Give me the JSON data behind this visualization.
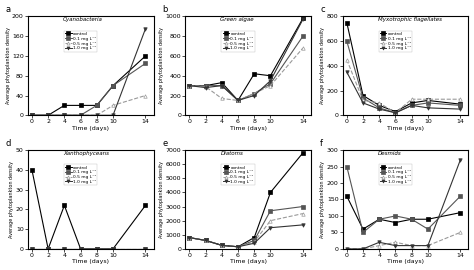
{
  "days": [
    0,
    2,
    4,
    6,
    8,
    10,
    14
  ],
  "panels": [
    {
      "label": "a",
      "title": "Cyanobacteria",
      "ylim": [
        0,
        200
      ],
      "yticks": [
        0,
        40,
        80,
        120,
        160,
        200
      ],
      "series": [
        {
          "name": "control",
          "marker": "s",
          "color": "#000000",
          "ls": "-",
          "lw": 0.8,
          "ms": 2.5,
          "mfc": "#000000",
          "values": [
            0,
            0,
            20,
            20,
            20,
            60,
            120
          ]
        },
        {
          "name": "0.1 mg L⁻¹",
          "marker": "s",
          "color": "#555555",
          "ls": "-",
          "lw": 0.8,
          "ms": 2.5,
          "mfc": "#555555",
          "values": [
            0,
            0,
            0,
            0,
            20,
            60,
            105
          ]
        },
        {
          "name": "0.5 mg L⁻¹",
          "marker": "^",
          "color": "#999999",
          "ls": "--",
          "lw": 0.8,
          "ms": 2.5,
          "mfc": "#ffffff",
          "values": [
            0,
            0,
            0,
            0,
            0,
            20,
            40
          ]
        },
        {
          "name": "1.0 mg L⁻¹",
          "marker": "v",
          "color": "#333333",
          "ls": "-",
          "lw": 0.8,
          "ms": 2.5,
          "mfc": "#333333",
          "values": [
            0,
            0,
            0,
            0,
            0,
            0,
            175
          ]
        }
      ]
    },
    {
      "label": "b",
      "title": "Green algae",
      "ylim": [
        0,
        1000
      ],
      "yticks": [
        0,
        200,
        400,
        600,
        800,
        1000
      ],
      "series": [
        {
          "name": "control",
          "marker": "s",
          "color": "#000000",
          "ls": "-",
          "lw": 0.8,
          "ms": 2.5,
          "mfc": "#000000",
          "values": [
            300,
            300,
            330,
            150,
            420,
            400,
            980
          ]
        },
        {
          "name": "0.1 mg L⁻¹",
          "marker": "s",
          "color": "#555555",
          "ls": "-",
          "lw": 0.8,
          "ms": 2.5,
          "mfc": "#555555",
          "values": [
            300,
            300,
            300,
            150,
            220,
            320,
            800
          ]
        },
        {
          "name": "0.5 mg L⁻¹",
          "marker": "^",
          "color": "#999999",
          "ls": "--",
          "lw": 0.8,
          "ms": 2.5,
          "mfc": "#ffffff",
          "values": [
            300,
            290,
            170,
            150,
            220,
            300,
            680
          ]
        },
        {
          "name": "1.0 mg L⁻¹",
          "marker": "v",
          "color": "#333333",
          "ls": "-",
          "lw": 0.8,
          "ms": 2.5,
          "mfc": "#333333",
          "values": [
            300,
            280,
            300,
            150,
            200,
            350,
            970
          ]
        }
      ]
    },
    {
      "label": "c",
      "title": "Myxotrophic flagellates",
      "ylim": [
        0,
        800
      ],
      "yticks": [
        0,
        200,
        400,
        600,
        800
      ],
      "series": [
        {
          "name": "control",
          "marker": "s",
          "color": "#000000",
          "ls": "-",
          "lw": 0.8,
          "ms": 2.5,
          "mfc": "#000000",
          "values": [
            750,
            160,
            80,
            30,
            100,
            120,
            90
          ]
        },
        {
          "name": "0.1 mg L⁻¹",
          "marker": "s",
          "color": "#555555",
          "ls": "-",
          "lw": 0.8,
          "ms": 2.5,
          "mfc": "#555555",
          "values": [
            600,
            140,
            60,
            20,
            80,
            100,
            80
          ]
        },
        {
          "name": "0.5 mg L⁻¹",
          "marker": "^",
          "color": "#999999",
          "ls": "--",
          "lw": 0.8,
          "ms": 2.5,
          "mfc": "#ffffff",
          "values": [
            450,
            120,
            100,
            20,
            130,
            130,
            130
          ]
        },
        {
          "name": "1.0 mg L⁻¹",
          "marker": "v",
          "color": "#333333",
          "ls": "-",
          "lw": 0.8,
          "ms": 2.5,
          "mfc": "#333333",
          "values": [
            350,
            100,
            50,
            20,
            80,
            60,
            50
          ]
        }
      ]
    },
    {
      "label": "d",
      "title": "Xanthophyceans",
      "ylim": [
        0,
        50
      ],
      "yticks": [
        0,
        10,
        20,
        30,
        40,
        50
      ],
      "series": [
        {
          "name": "control",
          "marker": "s",
          "color": "#000000",
          "ls": "-",
          "lw": 0.8,
          "ms": 2.5,
          "mfc": "#000000",
          "values": [
            40,
            0,
            22,
            0,
            0,
            0,
            22
          ]
        },
        {
          "name": "0.1 mg L⁻¹",
          "marker": "s",
          "color": "#555555",
          "ls": "-",
          "lw": 0.8,
          "ms": 2.5,
          "mfc": "#555555",
          "values": [
            0,
            0,
            0,
            0,
            0,
            0,
            0
          ]
        },
        {
          "name": "0.5 mg L⁻¹",
          "marker": "^",
          "color": "#999999",
          "ls": "--",
          "lw": 0.8,
          "ms": 2.5,
          "mfc": "#ffffff",
          "values": [
            0,
            0,
            0,
            0,
            0,
            0,
            0
          ]
        },
        {
          "name": "1.0 mg L⁻¹",
          "marker": "v",
          "color": "#333333",
          "ls": "-",
          "lw": 0.8,
          "ms": 2.5,
          "mfc": "#333333",
          "values": [
            0,
            0,
            0,
            0,
            0,
            0,
            0
          ]
        }
      ]
    },
    {
      "label": "e",
      "title": "Diatoms",
      "ylim": [
        0,
        7000
      ],
      "yticks": [
        0,
        1000,
        2000,
        3000,
        4000,
        5000,
        6000,
        7000
      ],
      "series": [
        {
          "name": "control",
          "marker": "s",
          "color": "#000000",
          "ls": "-",
          "lw": 0.8,
          "ms": 2.5,
          "mfc": "#000000",
          "values": [
            800,
            600,
            250,
            150,
            800,
            4000,
            6800
          ]
        },
        {
          "name": "0.1 mg L⁻¹",
          "marker": "s",
          "color": "#555555",
          "ls": "-",
          "lw": 0.8,
          "ms": 2.5,
          "mfc": "#555555",
          "values": [
            800,
            600,
            250,
            150,
            600,
            2700,
            3000
          ]
        },
        {
          "name": "0.5 mg L⁻¹",
          "marker": "^",
          "color": "#999999",
          "ls": "--",
          "lw": 0.8,
          "ms": 2.5,
          "mfc": "#ffffff",
          "values": [
            800,
            600,
            250,
            150,
            500,
            2000,
            2500
          ]
        },
        {
          "name": "1.0 mg L⁻¹",
          "marker": "v",
          "color": "#333333",
          "ls": "-",
          "lw": 0.8,
          "ms": 2.5,
          "mfc": "#333333",
          "values": [
            800,
            600,
            250,
            150,
            400,
            1500,
            1700
          ]
        }
      ]
    },
    {
      "label": "f",
      "title": "Desmids",
      "ylim": [
        0,
        300
      ],
      "yticks": [
        0,
        50,
        100,
        150,
        200,
        250,
        300
      ],
      "series": [
        {
          "name": "control",
          "marker": "s",
          "color": "#000000",
          "ls": "-",
          "lw": 0.8,
          "ms": 2.5,
          "mfc": "#000000",
          "values": [
            160,
            60,
            90,
            80,
            90,
            90,
            110
          ]
        },
        {
          "name": "0.1 mg L⁻¹",
          "marker": "s",
          "color": "#555555",
          "ls": "-",
          "lw": 0.8,
          "ms": 2.5,
          "mfc": "#555555",
          "values": [
            250,
            50,
            90,
            100,
            90,
            60,
            160
          ]
        },
        {
          "name": "0.5 mg L⁻¹",
          "marker": "^",
          "color": "#999999",
          "ls": "--",
          "lw": 0.8,
          "ms": 2.5,
          "mfc": "#ffffff",
          "values": [
            0,
            0,
            10,
            20,
            10,
            10,
            50
          ]
        },
        {
          "name": "1.0 mg L⁻¹",
          "marker": "v",
          "color": "#333333",
          "ls": "-",
          "lw": 0.8,
          "ms": 2.5,
          "mfc": "#333333",
          "values": [
            0,
            0,
            20,
            10,
            10,
            10,
            270
          ]
        }
      ]
    }
  ],
  "xlabel": "Time (days)",
  "ylabel": "Average phytoplankton density",
  "xticks": [
    0,
    2,
    4,
    6,
    8,
    10,
    14
  ],
  "background_color": "#ffffff"
}
